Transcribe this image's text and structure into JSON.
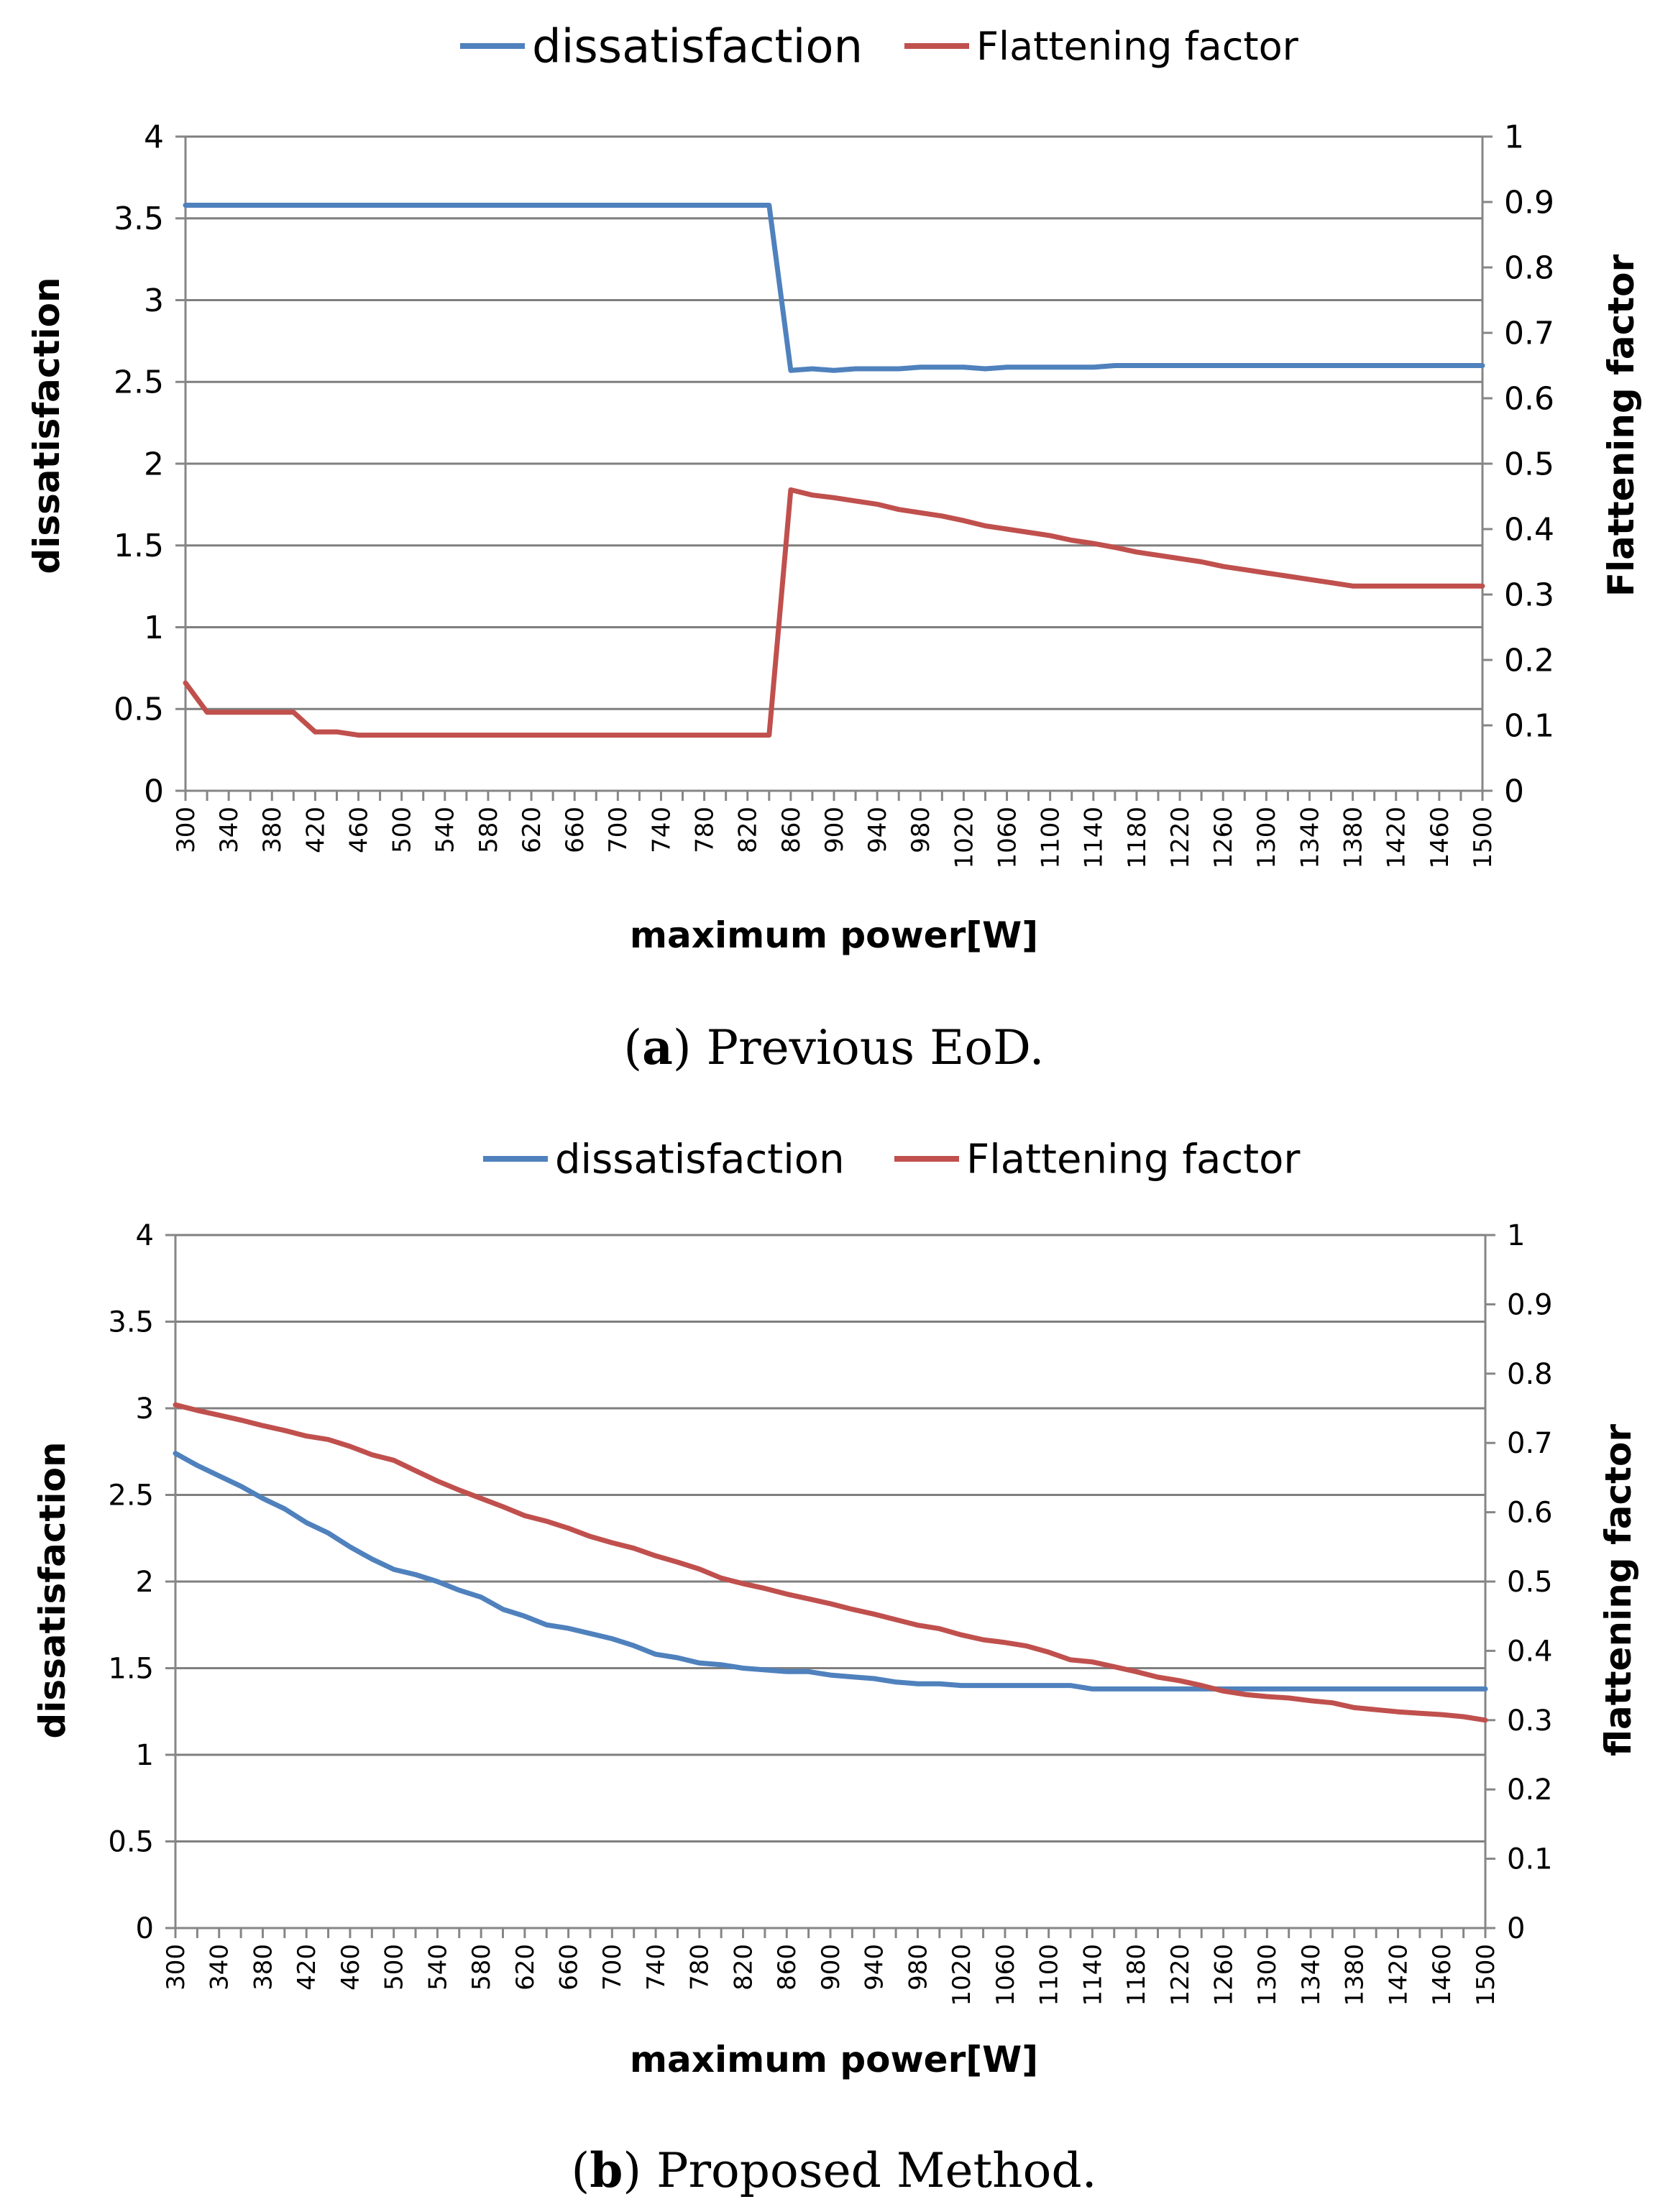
{
  "figure_a": {
    "caption_label": "a",
    "caption_text": "Previous EoD."
  },
  "figure_b": {
    "caption_label": "b",
    "caption_text": "Proposed Method."
  },
  "colors": {
    "dissatisfaction": "#4f81bd",
    "flattening": "#c0504d",
    "grid": "#7f7f7f",
    "axis": "#868686"
  },
  "chart_data": [
    {
      "type": "line",
      "title": "",
      "legend": [
        "dissatisfaction",
        "Flattening factor"
      ],
      "legend_position": "top",
      "xlabel": "maximum power[W]",
      "ylabel": "dissatisfaction",
      "y2label": "Flattening factor",
      "ylim": [
        0,
        4
      ],
      "y2lim": [
        0,
        1
      ],
      "yticks": [
        "0",
        "0.5",
        "1",
        "1.5",
        "2",
        "2.5",
        "3",
        "3.5",
        "4"
      ],
      "y2ticks": [
        "0",
        "0.1",
        "0.2",
        "0.3",
        "0.4",
        "0.5",
        "0.6",
        "0.7",
        "0.8",
        "0.9",
        "1"
      ],
      "xtick_labels": [
        "300",
        "340",
        "380",
        "420",
        "460",
        "500",
        "540",
        "580",
        "620",
        "660",
        "700",
        "740",
        "780",
        "820",
        "860",
        "900",
        "940",
        "980",
        "1020",
        "1060",
        "1100",
        "1140",
        "1180",
        "1220",
        "1260",
        "1300",
        "1340",
        "1380",
        "1420",
        "1460",
        "1500"
      ],
      "x": [
        300,
        320,
        340,
        360,
        380,
        400,
        420,
        440,
        460,
        480,
        500,
        520,
        540,
        560,
        580,
        600,
        620,
        640,
        660,
        680,
        700,
        720,
        740,
        760,
        780,
        800,
        820,
        840,
        860,
        880,
        900,
        920,
        940,
        960,
        980,
        1000,
        1020,
        1040,
        1060,
        1080,
        1100,
        1120,
        1140,
        1160,
        1180,
        1200,
        1220,
        1240,
        1260,
        1280,
        1300,
        1320,
        1340,
        1360,
        1380,
        1400,
        1420,
        1440,
        1460,
        1480,
        1500
      ],
      "series": [
        {
          "name": "dissatisfaction",
          "axis": "left",
          "values": [
            3.58,
            3.58,
            3.58,
            3.58,
            3.58,
            3.58,
            3.58,
            3.58,
            3.58,
            3.58,
            3.58,
            3.58,
            3.58,
            3.58,
            3.58,
            3.58,
            3.58,
            3.58,
            3.58,
            3.58,
            3.58,
            3.58,
            3.58,
            3.58,
            3.58,
            3.58,
            3.58,
            3.58,
            2.57,
            2.58,
            2.57,
            2.58,
            2.58,
            2.58,
            2.59,
            2.59,
            2.59,
            2.58,
            2.59,
            2.59,
            2.59,
            2.59,
            2.59,
            2.6,
            2.6,
            2.6,
            2.6,
            2.6,
            2.6,
            2.6,
            2.6,
            2.6,
            2.6,
            2.6,
            2.6,
            2.6,
            2.6,
            2.6,
            2.6,
            2.6,
            2.6
          ]
        },
        {
          "name": "Flattening factor",
          "axis": "right",
          "values": [
            0.165,
            0.12,
            0.12,
            0.12,
            0.12,
            0.12,
            0.09,
            0.09,
            0.085,
            0.085,
            0.085,
            0.085,
            0.085,
            0.085,
            0.085,
            0.085,
            0.085,
            0.085,
            0.085,
            0.085,
            0.085,
            0.085,
            0.085,
            0.085,
            0.085,
            0.085,
            0.085,
            0.085,
            0.46,
            0.452,
            0.448,
            0.443,
            0.438,
            0.43,
            0.425,
            0.42,
            0.413,
            0.405,
            0.4,
            0.395,
            0.39,
            0.383,
            0.378,
            0.372,
            0.365,
            0.36,
            0.355,
            0.35,
            0.343,
            0.338,
            0.333,
            0.328,
            0.323,
            0.318,
            0.313,
            0.313,
            0.313,
            0.313,
            0.313,
            0.313,
            0.313
          ]
        }
      ]
    },
    {
      "type": "line",
      "title": "",
      "legend": [
        "dissatisfaction",
        "Flattening factor"
      ],
      "legend_position": "top",
      "xlabel": "maximum power[W]",
      "ylabel": "dissatisfaction",
      "y2label": "flattening factor",
      "ylim": [
        0,
        4
      ],
      "y2lim": [
        0,
        1
      ],
      "yticks": [
        "0",
        "0.5",
        "1",
        "1.5",
        "2",
        "2.5",
        "3",
        "3.5",
        "4"
      ],
      "y2ticks": [
        "0",
        "0.1",
        "0.2",
        "0.3",
        "0.4",
        "0.5",
        "0.6",
        "0.7",
        "0.8",
        "0.9",
        "1"
      ],
      "xtick_labels": [
        "300",
        "340",
        "380",
        "420",
        "460",
        "500",
        "540",
        "580",
        "620",
        "660",
        "700",
        "740",
        "780",
        "820",
        "860",
        "900",
        "940",
        "980",
        "1020",
        "1060",
        "1100",
        "1140",
        "1180",
        "1220",
        "1260",
        "1300",
        "1340",
        "1380",
        "1420",
        "1460",
        "1500"
      ],
      "x": [
        300,
        320,
        340,
        360,
        380,
        400,
        420,
        440,
        460,
        480,
        500,
        520,
        540,
        560,
        580,
        600,
        620,
        640,
        660,
        680,
        700,
        720,
        740,
        760,
        780,
        800,
        820,
        840,
        860,
        880,
        900,
        920,
        940,
        960,
        980,
        1000,
        1020,
        1040,
        1060,
        1080,
        1100,
        1120,
        1140,
        1160,
        1180,
        1200,
        1220,
        1240,
        1260,
        1280,
        1300,
        1320,
        1340,
        1360,
        1380,
        1400,
        1420,
        1440,
        1460,
        1480,
        1500
      ],
      "series": [
        {
          "name": "dissatisfaction",
          "axis": "left",
          "values": [
            2.74,
            2.67,
            2.61,
            2.55,
            2.48,
            2.42,
            2.34,
            2.28,
            2.2,
            2.13,
            2.07,
            2.04,
            2.0,
            1.95,
            1.91,
            1.84,
            1.8,
            1.75,
            1.73,
            1.7,
            1.67,
            1.63,
            1.58,
            1.56,
            1.53,
            1.52,
            1.5,
            1.49,
            1.48,
            1.48,
            1.46,
            1.45,
            1.44,
            1.42,
            1.41,
            1.41,
            1.4,
            1.4,
            1.4,
            1.4,
            1.4,
            1.4,
            1.38,
            1.38,
            1.38,
            1.38,
            1.38,
            1.38,
            1.38,
            1.38,
            1.38,
            1.38,
            1.38,
            1.38,
            1.38,
            1.38,
            1.38,
            1.38,
            1.38,
            1.38,
            1.38
          ]
        },
        {
          "name": "Flattening factor",
          "axis": "right",
          "values": [
            0.755,
            0.747,
            0.74,
            0.733,
            0.725,
            0.718,
            0.71,
            0.705,
            0.695,
            0.683,
            0.675,
            0.66,
            0.645,
            0.632,
            0.62,
            0.608,
            0.595,
            0.587,
            0.577,
            0.565,
            0.556,
            0.548,
            0.537,
            0.528,
            0.518,
            0.505,
            0.497,
            0.49,
            0.482,
            0.475,
            0.468,
            0.46,
            0.453,
            0.445,
            0.437,
            0.432,
            0.423,
            0.416,
            0.412,
            0.407,
            0.398,
            0.387,
            0.384,
            0.377,
            0.37,
            0.362,
            0.357,
            0.35,
            0.342,
            0.337,
            0.334,
            0.332,
            0.328,
            0.325,
            0.318,
            0.315,
            0.312,
            0.31,
            0.308,
            0.305,
            0.3
          ]
        }
      ]
    }
  ]
}
